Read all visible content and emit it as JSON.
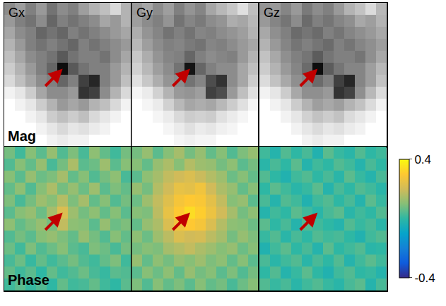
{
  "chart_data": {
    "type": "heatmap",
    "tick_labels": false,
    "columns": [
      "Gx",
      "Gy",
      "Gz"
    ],
    "rows": [
      "Mag",
      "Phase"
    ],
    "mag_range": [
      0,
      1
    ],
    "phase_colorbar": {
      "range": [
        -0.4,
        0.4
      ],
      "ticks": [
        0.4,
        -0.4
      ]
    },
    "panels": [
      {
        "column": "Gx",
        "row": "Mag",
        "arrow": {
          "x": 5,
          "y": 5
        },
        "cells": [
          [
            0.55,
            0.62,
            0.5,
            0.6,
            0.45,
            0.55,
            0.5,
            0.62,
            0.7,
            0.75,
            0.85,
            0.7
          ],
          [
            0.6,
            0.5,
            0.45,
            0.55,
            0.4,
            0.5,
            0.45,
            0.5,
            0.55,
            0.65,
            0.6,
            0.7
          ],
          [
            0.65,
            0.55,
            0.5,
            0.4,
            0.45,
            0.4,
            0.5,
            0.45,
            0.5,
            0.55,
            0.6,
            0.65
          ],
          [
            0.7,
            0.6,
            0.5,
            0.45,
            0.5,
            0.45,
            0.4,
            0.5,
            0.45,
            0.5,
            0.55,
            0.6
          ],
          [
            0.75,
            0.65,
            0.55,
            0.5,
            0.45,
            0.35,
            0.45,
            0.5,
            0.5,
            0.45,
            0.55,
            0.65
          ],
          [
            0.8,
            0.7,
            0.6,
            0.5,
            0.4,
            0.05,
            0.35,
            0.45,
            0.5,
            0.5,
            0.6,
            0.7
          ],
          [
            0.85,
            0.75,
            0.65,
            0.55,
            0.5,
            0.4,
            0.5,
            0.25,
            0.15,
            0.5,
            0.6,
            0.75
          ],
          [
            0.95,
            0.9,
            0.8,
            0.65,
            0.55,
            0.55,
            0.6,
            0.2,
            0.25,
            0.55,
            0.7,
            0.85
          ],
          [
            1,
            0.95,
            0.9,
            0.8,
            0.7,
            0.6,
            0.65,
            0.6,
            0.7,
            0.75,
            0.85,
            0.95
          ],
          [
            1,
            1,
            0.95,
            0.9,
            0.8,
            0.75,
            0.8,
            0.75,
            0.85,
            0.9,
            0.95,
            1
          ],
          [
            1,
            1,
            1,
            0.95,
            0.9,
            0.85,
            0.9,
            0.88,
            0.92,
            0.95,
            1,
            1
          ],
          [
            1,
            1,
            1,
            1,
            0.95,
            0.92,
            0.95,
            0.95,
            1,
            1,
            1,
            1
          ]
        ]
      },
      {
        "column": "Gy",
        "row": "Mag",
        "arrow": {
          "x": 5,
          "y": 5
        },
        "cells": [
          [
            0.6,
            0.65,
            0.55,
            0.62,
            0.5,
            0.58,
            0.52,
            0.65,
            0.72,
            0.78,
            0.88,
            0.75
          ],
          [
            0.62,
            0.55,
            0.5,
            0.58,
            0.45,
            0.52,
            0.48,
            0.55,
            0.58,
            0.68,
            0.65,
            0.72
          ],
          [
            0.68,
            0.58,
            0.52,
            0.45,
            0.5,
            0.45,
            0.52,
            0.5,
            0.55,
            0.58,
            0.62,
            0.7
          ],
          [
            0.72,
            0.62,
            0.55,
            0.5,
            0.52,
            0.48,
            0.45,
            0.52,
            0.5,
            0.55,
            0.6,
            0.65
          ],
          [
            0.78,
            0.68,
            0.58,
            0.52,
            0.5,
            0.4,
            0.5,
            0.55,
            0.52,
            0.5,
            0.6,
            0.7
          ],
          [
            0.82,
            0.72,
            0.62,
            0.55,
            0.45,
            0.08,
            0.4,
            0.5,
            0.55,
            0.55,
            0.65,
            0.75
          ],
          [
            0.88,
            0.78,
            0.68,
            0.58,
            0.55,
            0.45,
            0.52,
            0.3,
            0.2,
            0.55,
            0.65,
            0.8
          ],
          [
            0.96,
            0.92,
            0.82,
            0.7,
            0.6,
            0.58,
            0.62,
            0.25,
            0.3,
            0.6,
            0.75,
            0.88
          ],
          [
            1,
            0.96,
            0.92,
            0.82,
            0.72,
            0.65,
            0.68,
            0.65,
            0.72,
            0.8,
            0.88,
            0.96
          ],
          [
            1,
            1,
            0.96,
            0.92,
            0.85,
            0.8,
            0.82,
            0.8,
            0.88,
            0.92,
            0.96,
            1
          ],
          [
            1,
            1,
            1,
            0.96,
            0.92,
            0.88,
            0.92,
            0.9,
            0.94,
            0.96,
            1,
            1
          ],
          [
            1,
            1,
            1,
            1,
            0.96,
            0.94,
            0.96,
            0.96,
            1,
            1,
            1,
            1
          ]
        ]
      },
      {
        "column": "Gz",
        "row": "Mag",
        "arrow": {
          "x": 5,
          "y": 5
        },
        "cells": [
          [
            0.58,
            0.6,
            0.52,
            0.6,
            0.48,
            0.55,
            0.5,
            0.6,
            0.7,
            0.76,
            0.86,
            0.72
          ],
          [
            0.6,
            0.52,
            0.46,
            0.55,
            0.42,
            0.5,
            0.46,
            0.52,
            0.56,
            0.66,
            0.62,
            0.7
          ],
          [
            0.66,
            0.56,
            0.5,
            0.42,
            0.46,
            0.42,
            0.5,
            0.46,
            0.52,
            0.56,
            0.6,
            0.66
          ],
          [
            0.7,
            0.6,
            0.52,
            0.46,
            0.5,
            0.46,
            0.42,
            0.5,
            0.46,
            0.52,
            0.56,
            0.62
          ],
          [
            0.76,
            0.66,
            0.56,
            0.5,
            0.46,
            0.36,
            0.46,
            0.5,
            0.5,
            0.46,
            0.56,
            0.66
          ],
          [
            0.8,
            0.7,
            0.6,
            0.52,
            0.42,
            0.05,
            0.36,
            0.46,
            0.52,
            0.52,
            0.62,
            0.72
          ],
          [
            0.86,
            0.76,
            0.66,
            0.56,
            0.52,
            0.42,
            0.5,
            0.25,
            0.15,
            0.52,
            0.62,
            0.76
          ],
          [
            0.95,
            0.9,
            0.8,
            0.66,
            0.56,
            0.56,
            0.6,
            0.2,
            0.26,
            0.56,
            0.72,
            0.86
          ],
          [
            1,
            0.95,
            0.9,
            0.8,
            0.7,
            0.62,
            0.66,
            0.62,
            0.7,
            0.76,
            0.86,
            0.95
          ],
          [
            1,
            1,
            0.95,
            0.9,
            0.82,
            0.76,
            0.8,
            0.76,
            0.86,
            0.9,
            0.95,
            1
          ],
          [
            1,
            1,
            1,
            0.95,
            0.9,
            0.86,
            0.9,
            0.88,
            0.92,
            0.95,
            1,
            1
          ],
          [
            1,
            1,
            1,
            1,
            0.95,
            0.92,
            0.95,
            0.95,
            1,
            1,
            1,
            1
          ]
        ]
      },
      {
        "column": "Gx",
        "row": "Phase",
        "arrow": {
          "x": 5,
          "y": 5
        },
        "cells": [
          [
            0.08,
            0.02,
            0.1,
            0.05,
            0.12,
            0.04,
            0.09,
            0.03,
            0.11,
            0.06,
            0.02,
            0.08
          ],
          [
            0.04,
            0.1,
            0.06,
            0.12,
            0.03,
            0.08,
            0.15,
            0.05,
            0.07,
            0.13,
            0.05,
            0.1
          ],
          [
            0.1,
            0.05,
            0.12,
            0.07,
            0.09,
            0.14,
            0.06,
            0.1,
            0.04,
            0.08,
            0.11,
            0.03
          ],
          [
            0.06,
            0.11,
            0.04,
            0.1,
            0.15,
            0.08,
            0.12,
            0.07,
            0.13,
            0.05,
            0.09,
            0.06
          ],
          [
            0.09,
            0.03,
            0.08,
            0.13,
            0.1,
            0.16,
            0.09,
            0.14,
            0.06,
            0.1,
            0.04,
            0.08
          ],
          [
            0.05,
            0.1,
            0.12,
            0.07,
            0.14,
            0.22,
            0.13,
            0.08,
            0.11,
            0.06,
            0.1,
            0.05
          ],
          [
            0.11,
            0.06,
            0.09,
            0.12,
            0.08,
            0.18,
            0.11,
            0.1,
            0.05,
            0.12,
            0.07,
            0.09
          ],
          [
            0.04,
            0.08,
            0.05,
            0.1,
            0.12,
            0.09,
            0.06,
            0.12,
            0.08,
            0.04,
            0.1,
            0.06
          ],
          [
            0.07,
            0.02,
            0.09,
            0.04,
            0.07,
            0.1,
            0.05,
            0.03,
            0.09,
            0.07,
            0.03,
            0.08
          ],
          [
            0.03,
            0.07,
            0.01,
            0.06,
            0.02,
            0.05,
            0.08,
            0.04,
            0.02,
            0.06,
            0.09,
            0.02
          ],
          [
            0.06,
            0.02,
            0.05,
            0.0,
            0.06,
            0.02,
            0.04,
            0.07,
            0.03,
            0.01,
            0.05,
            0.04
          ],
          [
            0.02,
            0.05,
            0.01,
            0.04,
            0.0,
            0.06,
            0.02,
            0.03,
            0.06,
            0.02,
            0.0,
            0.05
          ]
        ]
      },
      {
        "column": "Gy",
        "row": "Phase",
        "arrow": {
          "x": 5,
          "y": 5
        },
        "cells": [
          [
            0.08,
            0.12,
            0.05,
            0.1,
            0.14,
            0.08,
            0.12,
            0.06,
            0.1,
            0.04,
            0.09,
            0.12
          ],
          [
            0.1,
            0.06,
            0.12,
            0.15,
            0.1,
            0.16,
            0.13,
            0.12,
            0.08,
            0.11,
            0.05,
            0.08
          ],
          [
            0.05,
            0.11,
            0.14,
            0.18,
            0.2,
            0.22,
            0.19,
            0.16,
            0.13,
            0.07,
            0.1,
            0.06
          ],
          [
            0.12,
            0.08,
            0.16,
            0.2,
            0.25,
            0.24,
            0.27,
            0.2,
            0.15,
            0.12,
            0.06,
            0.1
          ],
          [
            0.07,
            0.13,
            0.18,
            0.23,
            0.28,
            0.3,
            0.29,
            0.24,
            0.18,
            0.1,
            0.12,
            0.05
          ],
          [
            0.1,
            0.09,
            0.17,
            0.25,
            0.3,
            0.34,
            0.31,
            0.26,
            0.2,
            0.14,
            0.08,
            0.11
          ],
          [
            0.06,
            0.12,
            0.15,
            0.22,
            0.27,
            0.3,
            0.28,
            0.22,
            0.16,
            0.11,
            0.1,
            0.07
          ],
          [
            0.11,
            0.07,
            0.13,
            0.17,
            0.22,
            0.2,
            0.21,
            0.17,
            0.14,
            0.08,
            0.12,
            0.09
          ],
          [
            0.08,
            0.1,
            0.09,
            0.14,
            0.16,
            0.18,
            0.15,
            0.13,
            0.1,
            0.12,
            0.07,
            0.1
          ],
          [
            0.12,
            0.06,
            0.11,
            0.08,
            0.12,
            0.1,
            0.13,
            0.09,
            0.11,
            0.06,
            0.1,
            0.05
          ],
          [
            0.05,
            0.1,
            0.07,
            0.11,
            0.06,
            0.12,
            0.08,
            0.1,
            0.05,
            0.09,
            0.04,
            0.08
          ],
          [
            0.09,
            0.04,
            0.1,
            0.06,
            0.09,
            0.05,
            0.1,
            0.06,
            0.08,
            0.03,
            0.07,
            0.1
          ]
        ]
      },
      {
        "column": "Gz",
        "row": "Phase",
        "arrow": {
          "x": 5,
          "y": 5
        },
        "cells": [
          [
            0.02,
            -0.02,
            0.04,
            0.0,
            0.03,
            -0.03,
            0.05,
            0.01,
            -0.01,
            0.04,
            0.0,
            0.02
          ],
          [
            -0.01,
            0.03,
            0.0,
            0.05,
            -0.02,
            0.02,
            0.0,
            0.04,
            0.02,
            -0.02,
            0.03,
            0.0
          ],
          [
            0.04,
            0.0,
            -0.03,
            0.02,
            0.04,
            0.0,
            0.03,
            -0.01,
            0.05,
            0.01,
            -0.02,
            0.03
          ],
          [
            0.0,
            0.05,
            0.02,
            -0.01,
            0.01,
            0.05,
            -0.02,
            0.03,
            0.0,
            0.04,
            0.02,
            -0.01
          ],
          [
            0.03,
            -0.02,
            0.04,
            0.02,
            -0.03,
            0.02,
            0.04,
            0.0,
            0.03,
            -0.02,
            0.05,
            0.01
          ],
          [
            -0.02,
            0.02,
            0.0,
            0.05,
            0.02,
            -0.01,
            0.03,
            0.05,
            -0.01,
            0.02,
            0.0,
            0.04
          ],
          [
            0.05,
            0.0,
            0.03,
            -0.02,
            0.04,
            0.02,
            0.0,
            -0.02,
            0.04,
            0.01,
            0.03,
            -0.01
          ],
          [
            0.01,
            0.04,
            -0.01,
            0.03,
            0.0,
            0.04,
            0.02,
            0.03,
            0.0,
            -0.03,
            0.02,
            0.04
          ],
          [
            -0.03,
            0.02,
            0.05,
            0.0,
            0.03,
            -0.02,
            0.05,
            0.0,
            0.02,
            0.04,
            -0.01,
            0.0
          ],
          [
            0.03,
            -0.01,
            0.02,
            0.04,
            -0.01,
            0.03,
            0.0,
            0.04,
            -0.02,
            0.02,
            0.05,
            0.02
          ],
          [
            0.0,
            0.04,
            -0.02,
            0.01,
            0.05,
            0.0,
            -0.03,
            0.02,
            0.04,
            0.0,
            0.01,
            -0.02
          ],
          [
            0.04,
            0.01,
            0.03,
            -0.01,
            0.02,
            0.04,
            0.01,
            -0.01,
            0.03,
            0.05,
            -0.02,
            0.03
          ]
        ]
      }
    ]
  }
}
